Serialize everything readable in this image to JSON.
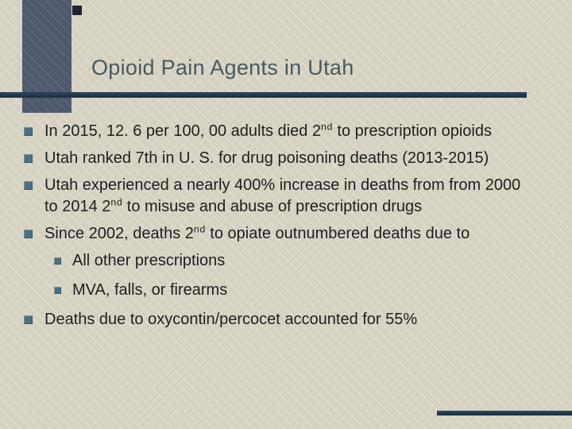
{
  "slide": {
    "title": "Opioid Pain Agents in Utah",
    "bullets": [
      {
        "level": 1,
        "segments": [
          {
            "text": "In 2015, 12. 6 per 100, 00 adults died 2"
          },
          {
            "text": "nd",
            "sup": true
          },
          {
            "text": " to prescription opioids"
          }
        ]
      },
      {
        "level": 1,
        "segments": [
          {
            "text": "Utah ranked 7th in U. S. for drug poisoning deaths (2013-2015)"
          }
        ]
      },
      {
        "level": 1,
        "segments": [
          {
            "text": "Utah experienced a nearly 400% increase in deaths from from 2000 to 2014 2"
          },
          {
            "text": "nd",
            "sup": true
          },
          {
            "text": " to misuse and abuse of prescription drugs"
          }
        ]
      },
      {
        "level": 1,
        "segments": [
          {
            "text": "Since 2002, deaths 2"
          },
          {
            "text": "nd",
            "sup": true
          },
          {
            "text": " to opiate outnumbered deaths due to"
          }
        ]
      },
      {
        "level": 2,
        "segments": [
          {
            "text": "All other prescriptions"
          }
        ]
      },
      {
        "level": 2,
        "segments": [
          {
            "text": "MVA, falls, or firearms"
          }
        ]
      },
      {
        "level": 1,
        "segments": [
          {
            "text": "Deaths due to oxycontin/percocet accounted for 55%"
          }
        ]
      }
    ],
    "icons": {
      "bullet": "square",
      "sub_bullet": "square"
    },
    "colors": {
      "background": "#d7d3c3",
      "accent_bar": "#4e5a6b",
      "accent_square": "#1d2530",
      "rule": "#223649",
      "title": "#48595f",
      "bullet_square": "#4c7080",
      "body_text": "#1e1e1e"
    }
  }
}
